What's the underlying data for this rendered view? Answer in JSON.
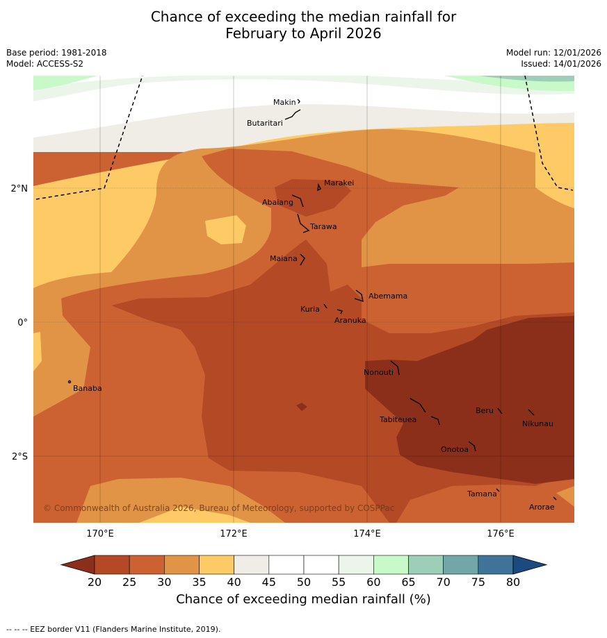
{
  "title": {
    "line1": "Chance of exceeding the median rainfall for",
    "line2": "February to April 2026"
  },
  "meta": {
    "base_period": "Base period: 1981-2018",
    "model": "Model: ACCESS-S2",
    "model_run": "Model run: 12/01/2026",
    "issued": "Issued: 14/01/2026"
  },
  "map": {
    "x_ticks": [
      "170°E",
      "172°E",
      "174°E",
      "176°E"
    ],
    "y_ticks": [
      "2°N",
      "0°",
      "2°S"
    ],
    "places": [
      "Makin",
      "Butaritari",
      "Marakei",
      "Abaiang",
      "Tarawa",
      "Maiana",
      "Abemama",
      "Kuria",
      "Aranuka",
      "Banaba",
      "Nonouti",
      "Beru",
      "Nikunau",
      "Tabiteuea",
      "Onotoa",
      "Tamana",
      "Arorae"
    ],
    "copyright": "© Commonwealth of Australia 2026, Bureau of Meteorology, supported by COSPPac"
  },
  "colorbar": {
    "labels": [
      "20",
      "25",
      "30",
      "35",
      "40",
      "45",
      "50",
      "55",
      "60",
      "65",
      "70",
      "75",
      "80"
    ],
    "colors": [
      "#8c2f1a",
      "#b44a25",
      "#cc6232",
      "#e19346",
      "#fdca66",
      "#f0ede7",
      "#ffffff",
      "#ffffff",
      "#ecf5ea",
      "#c8f9c8",
      "#9cceb8",
      "#72a6a8",
      "#3f7398",
      "#1a4a80"
    ],
    "title": "Chance of exceeding median rainfall (%)"
  },
  "footer": "--  --  -- EEZ border V11 (Flanders Marine Institute, 2019)."
}
